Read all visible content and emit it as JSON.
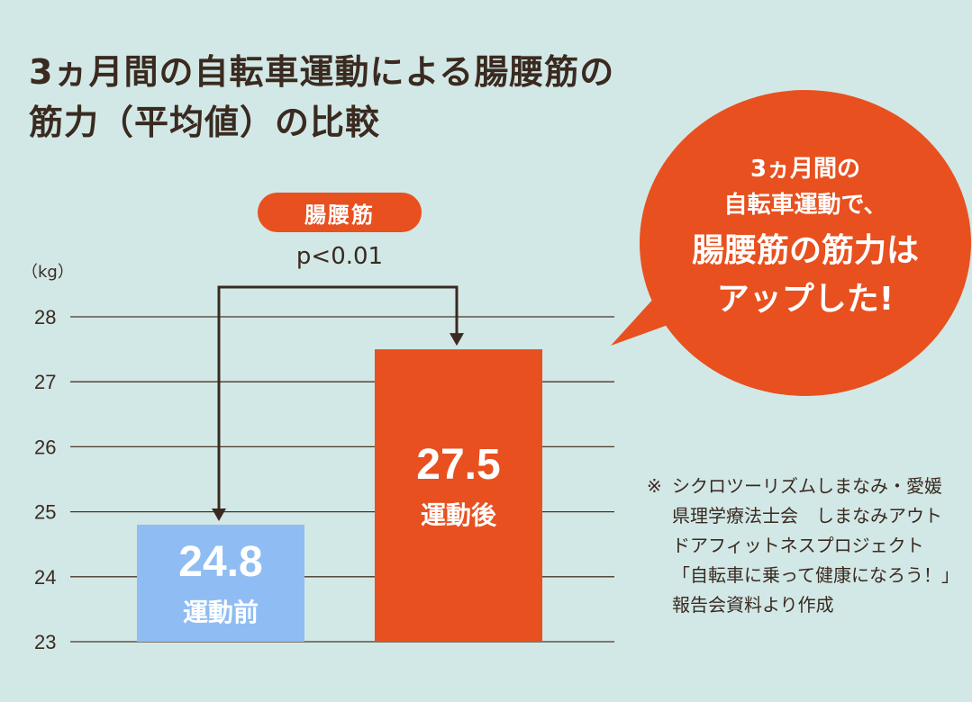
{
  "title": {
    "line1": "3ヵ月間の自転車運動による腸腰筋の",
    "line2": "筋力（平均値）の比較"
  },
  "muscle_label": "腸腰筋",
  "significance": "p<0.01",
  "unit_label": "（kg）",
  "bubble": {
    "line1": "3ヵ月間の",
    "line2": "自転車運動で、",
    "line3": "腸腰筋の筋力は",
    "line4": "アップした!"
  },
  "note": {
    "mark": "※",
    "text": "シクロツーリズムしまなみ・愛媛県理学療法士会　しまなみアウトドアフィットネスプロジェクト「自転車に乗って健康になろう！」報告会資料より作成"
  },
  "colors": {
    "background": "#d2e8e6",
    "before_bar": "#8fbdf3",
    "after_bar": "#e8501f",
    "text": "#3a2a20"
  },
  "chart_data": {
    "type": "bar",
    "categories": [
      "運動前",
      "運動後"
    ],
    "values": [
      24.8,
      27.5
    ],
    "value_labels": [
      "24.8",
      "27.5"
    ],
    "bar_colors": [
      "#8fbdf3",
      "#e8501f"
    ],
    "ylabel": "（kg）",
    "ylim": [
      23,
      28
    ],
    "yticks": [
      23,
      24,
      25,
      26,
      27,
      28
    ],
    "grid": true,
    "annotation": "p<0.01"
  }
}
